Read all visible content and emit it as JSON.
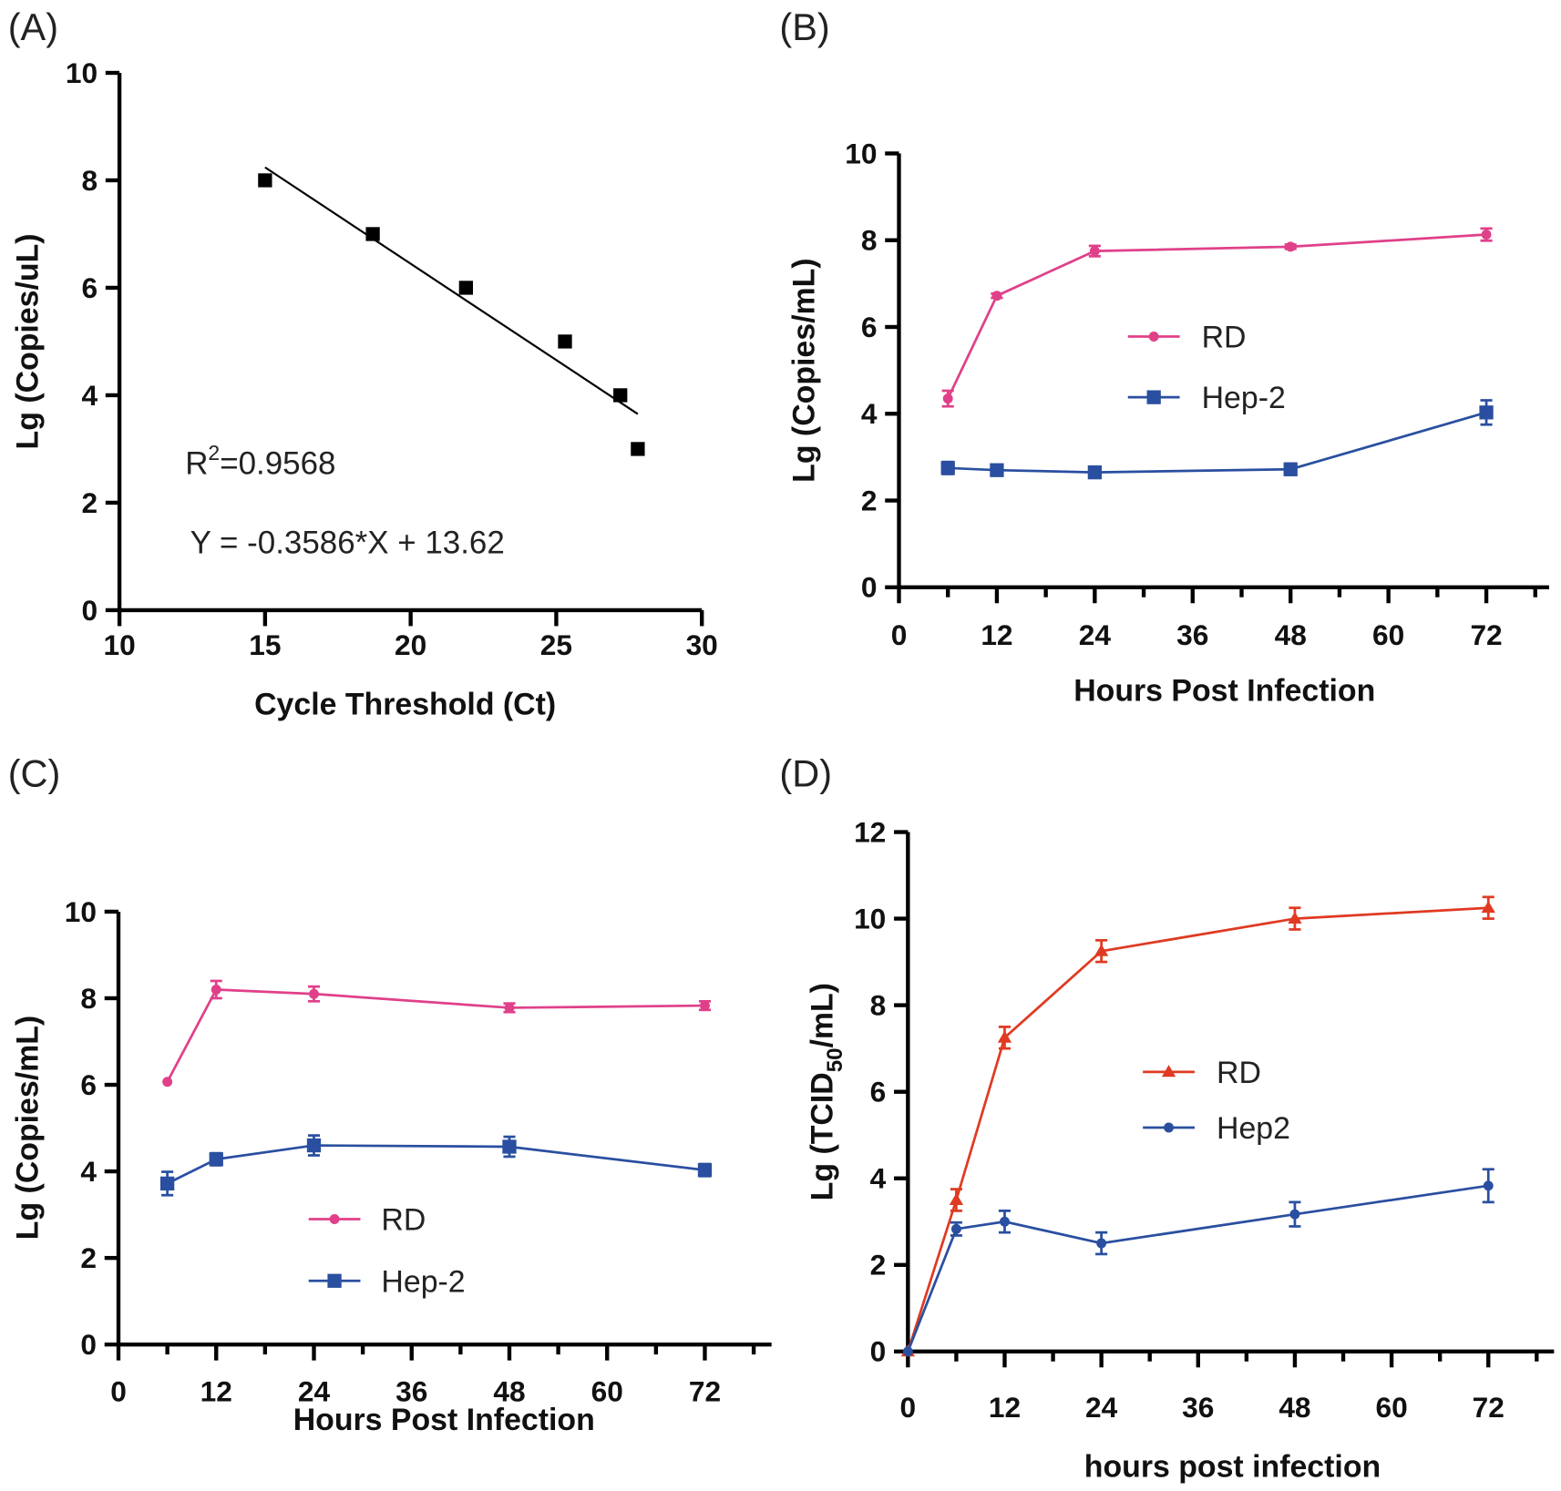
{
  "chart_data": [
    {
      "panel": "(A)",
      "type": "scatter",
      "xlabel": "Cycle Threshold (Ct)",
      "ylabel": "Lg (Copies/uL)",
      "xlim": [
        10,
        30
      ],
      "ylim": [
        0,
        10
      ],
      "xticks": [
        10,
        15,
        20,
        25,
        30
      ],
      "yticks": [
        0,
        2,
        4,
        6,
        8,
        10
      ],
      "series": [
        {
          "name": "standard",
          "color": "#000000",
          "marker": "square",
          "x": [
            15,
            18.7,
            21.9,
            25.3,
            27.2,
            27.8
          ],
          "y": [
            8,
            7,
            6,
            5,
            4,
            3
          ]
        }
      ],
      "fit": {
        "slope": -0.3586,
        "intercept": 13.62,
        "x_range": [
          15,
          27.8
        ]
      },
      "annotations": {
        "r2_prefix": "R",
        "r2_sup": "2",
        "r2_value": "=0.9568",
        "equation": "Y = -0.3586*X + 13.62"
      }
    },
    {
      "panel": "(B)",
      "type": "line",
      "xlabel": "Hours Post Infection",
      "ylabel": "Lg (Copies/mL)",
      "xlim": [
        0,
        78
      ],
      "ylim": [
        0,
        10
      ],
      "xticks": [
        0,
        12,
        24,
        36,
        48,
        60,
        72
      ],
      "yticks": [
        0,
        2,
        4,
        6,
        8,
        10
      ],
      "series": [
        {
          "name": "RD",
          "color": "#e0408a",
          "marker": "circle",
          "x": [
            6,
            12,
            24,
            48,
            72
          ],
          "y": [
            4.35,
            6.72,
            7.75,
            7.85,
            8.13
          ],
          "err": [
            0.18,
            0.05,
            0.12,
            0.05,
            0.14
          ]
        },
        {
          "name": "Hep-2",
          "color": "#2a4fa0",
          "marker": "square",
          "x": [
            6,
            12,
            24,
            48,
            72
          ],
          "y": [
            2.75,
            2.7,
            2.65,
            2.72,
            4.03
          ],
          "err": [
            0.14,
            0.1,
            0.13,
            0.13,
            0.28
          ]
        }
      ]
    },
    {
      "panel": "(C)",
      "type": "line",
      "xlabel": "Hours Post Infection",
      "ylabel": "Lg (Copies/mL)",
      "xlim": [
        0,
        78
      ],
      "ylim": [
        0,
        10
      ],
      "xticks": [
        0,
        12,
        24,
        36,
        48,
        60,
        72
      ],
      "yticks": [
        0,
        2,
        4,
        6,
        8,
        10
      ],
      "series": [
        {
          "name": "RD",
          "color": "#e0408a",
          "marker": "circle",
          "x": [
            6,
            12,
            24,
            48,
            72
          ],
          "y": [
            6.07,
            8.2,
            8.1,
            7.78,
            7.83
          ],
          "err": [
            0.03,
            0.2,
            0.17,
            0.1,
            0.1
          ]
        },
        {
          "name": "Hep-2",
          "color": "#2a4fa0",
          "marker": "square",
          "x": [
            6,
            12,
            24,
            48,
            72
          ],
          "y": [
            3.72,
            4.28,
            4.6,
            4.57,
            4.03
          ],
          "err": [
            0.27,
            0.14,
            0.23,
            0.23,
            0.14
          ]
        }
      ]
    },
    {
      "panel": "(D)",
      "type": "line",
      "xlabel": "hours post infection",
      "ylabel_main": "Lg (TCID",
      "ylabel_sub": "50",
      "ylabel_end": "/mL)",
      "xlim": [
        0,
        78
      ],
      "ylim": [
        0,
        12
      ],
      "xticks": [
        0,
        12,
        24,
        36,
        48,
        60,
        72
      ],
      "yticks": [
        0,
        2,
        4,
        6,
        8,
        10,
        12
      ],
      "series": [
        {
          "name": "RD",
          "color": "#e03a22",
          "marker": "triangle",
          "x": [
            0,
            6,
            12,
            24,
            48,
            72
          ],
          "y": [
            0,
            3.5,
            7.25,
            9.25,
            10.0,
            10.25
          ],
          "err": [
            0,
            0.25,
            0.25,
            0.25,
            0.25,
            0.25
          ]
        },
        {
          "name": "Hep2",
          "color": "#2a4fa0",
          "marker": "circle",
          "x": [
            0,
            6,
            12,
            24,
            48,
            72
          ],
          "y": [
            0,
            2.83,
            3.0,
            2.5,
            3.17,
            3.83
          ],
          "err": [
            0,
            0.15,
            0.25,
            0.25,
            0.28,
            0.38
          ]
        }
      ]
    }
  ]
}
